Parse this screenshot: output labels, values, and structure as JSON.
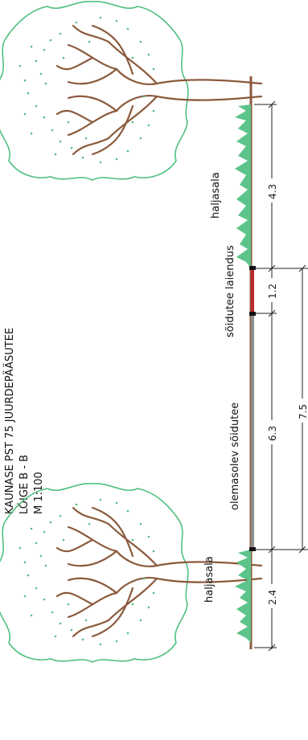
{
  "title": {
    "line1": "KAUNASE PST 75 JUURDEPÄÄSUTEE",
    "line2": "LÕIGE B - B",
    "line3": "M 1:100"
  },
  "labels": {
    "verge_upper": "haljasala",
    "extension": "sõidutee laiendus",
    "existing_road": "olemasolev sõidutee",
    "verge_lower": "haljasala"
  },
  "dimensions": {
    "verge_upper": "4.3",
    "extension": "1.2",
    "existing_road": "6.3",
    "total_width": "7.5",
    "verge_lower": "2.4"
  },
  "colors": {
    "ground": "#8b5a3c",
    "road": "#8f8f8f",
    "extension": "#c0262d",
    "grass": "#5cc48a",
    "canopy": "#4fbf7f",
    "trunk": "#8b5a3c",
    "dimension": "#222222"
  }
}
